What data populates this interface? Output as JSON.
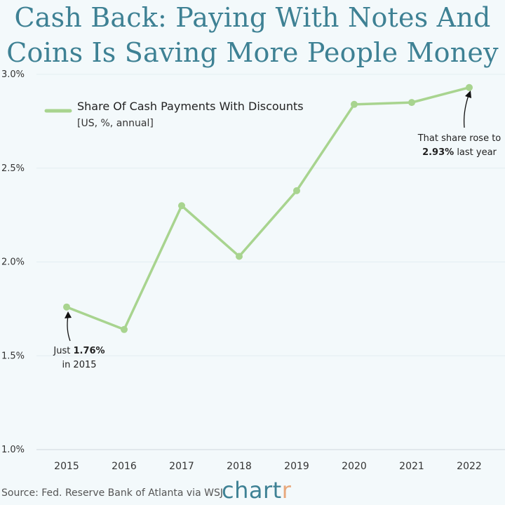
{
  "title": {
    "line1": "Cash Back: Paying With Notes And",
    "line2": "Coins Is Saving More People Money"
  },
  "chart_data": {
    "type": "line",
    "title": "Cash Back: Paying With Notes And Coins Is Saving More People Money",
    "categories": [
      "2015",
      "2016",
      "2017",
      "2018",
      "2019",
      "2020",
      "2021",
      "2022"
    ],
    "series": [
      {
        "name": "Share Of Cash Payments With Discounts",
        "values": [
          1.76,
          1.64,
          2.3,
          2.03,
          2.38,
          2.84,
          2.85,
          2.93
        ]
      }
    ],
    "legend": {
      "label": "Share Of Cash Payments With Discounts",
      "sublabel": "[US, %, annual]",
      "placement": "top-left"
    },
    "ylim": [
      1.0,
      3.0
    ],
    "yticks": [
      "1.0%",
      "1.5%",
      "2.0%",
      "2.5%",
      "3.0%"
    ],
    "grid": true,
    "annotations": [
      {
        "target": "2015",
        "line1_prefix": "Just ",
        "line1_value": "1.76%",
        "line2": "in 2015"
      },
      {
        "target": "2022",
        "line1_prefix": "That share rose to",
        "line2_value": "2.93%",
        "line2_suffix": " last year"
      }
    ],
    "colors": {
      "line": "#a8d48f",
      "grid": "#e3eef2",
      "axis": "#cfd8dc"
    }
  },
  "footer": {
    "source": "Source: Fed. Reserve Bank of Atlanta via WSJ",
    "brand_main": "chart",
    "brand_accent": "r"
  }
}
